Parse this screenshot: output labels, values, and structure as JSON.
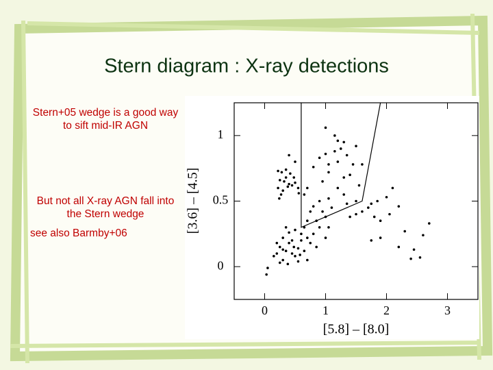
{
  "slide": {
    "title": "Stern diagram : X-ray detections",
    "notes": [
      "Stern+05 wedge is a good way to sift mid-IR AGN",
      "But not all X-ray AGN fall into the Stern wedge",
      "see also Barmby+06"
    ]
  },
  "chart_data": {
    "type": "scatter",
    "color": "#000000",
    "xlabel": "[5.8]  –  [8.0]",
    "ylabel": "[3.6]  –  [4.5]",
    "xlim": [
      -0.5,
      3.5
    ],
    "ylim": [
      -0.25,
      1.25
    ],
    "xticks": [
      0,
      1,
      2,
      3
    ],
    "yticks": [
      0,
      0.5,
      1
    ],
    "x": [
      0.22,
      0.28,
      0.35,
      0.42,
      0.25,
      0.32,
      0.4,
      0.45,
      0.5,
      0.22,
      0.3,
      0.38,
      0.55,
      0.24,
      0.5,
      0.4,
      0.35,
      0.48,
      0.27,
      0.56,
      1.0,
      1.2,
      1.3,
      1.25,
      0.9,
      1.0,
      1.15,
      1.35,
      1.5,
      1.2,
      1.45,
      1.6,
      0.8,
      1.05,
      1.3,
      1.4,
      1.55,
      0.95,
      1.2,
      0.9,
      1.05,
      1.3,
      0.8,
      0.75,
      0.95,
      1.1,
      1.5,
      0.7,
      0.85,
      1.0,
      1.35,
      1.15,
      1.05,
      0.7,
      0.65,
      1.6,
      1.7,
      1.75,
      1.85,
      2.0,
      2.1,
      2.2,
      1.8,
      1.9,
      1.5,
      1.4,
      2.3,
      2.2,
      2.45,
      2.4,
      2.55,
      2.7,
      2.6,
      1.75,
      1.9,
      2.05,
      0.2,
      0.25,
      0.3,
      0.35,
      0.4,
      0.45,
      0.5,
      0.55,
      0.6,
      0.65,
      0.7,
      0.75,
      0.3,
      0.4,
      0.5,
      0.6,
      0.8,
      0.9,
      1.0,
      1.05,
      0.25,
      0.38,
      0.55,
      0.15,
      0.45,
      0.65,
      0.7,
      0.35,
      0.05,
      0.03,
      0.2,
      0.85,
      0.48,
      0.58,
      0.3
    ],
    "values": [
      0.73,
      0.72,
      0.74,
      0.71,
      0.66,
      0.65,
      0.63,
      0.62,
      0.64,
      0.6,
      0.58,
      0.61,
      0.6,
      0.52,
      0.8,
      0.85,
      0.68,
      0.68,
      0.55,
      0.56,
      1.06,
      0.96,
      0.95,
      0.9,
      0.83,
      0.86,
      0.88,
      0.85,
      0.92,
      0.8,
      0.78,
      0.78,
      0.76,
      0.72,
      0.68,
      0.7,
      0.62,
      0.65,
      0.6,
      0.5,
      0.52,
      0.55,
      0.46,
      0.42,
      0.42,
      0.45,
      0.5,
      0.35,
      0.35,
      0.38,
      0.48,
      1.0,
      0.78,
      0.6,
      0.55,
      0.42,
      0.45,
      0.48,
      0.5,
      0.53,
      0.6,
      0.46,
      0.38,
      0.35,
      0.4,
      0.38,
      0.27,
      0.15,
      0.13,
      0.06,
      0.07,
      0.33,
      0.24,
      0.2,
      0.22,
      0.4,
      0.1,
      0.15,
      0.05,
      0.12,
      0.18,
      0.1,
      0.08,
      0.14,
      0.2,
      0.12,
      0.05,
      0.18,
      0.22,
      0.26,
      0.28,
      0.25,
      0.25,
      0.3,
      0.22,
      0.3,
      0.03,
      0.02,
      0.04,
      0.08,
      0.2,
      0.3,
      0.22,
      0.3,
      -0.01,
      -0.06,
      0.18,
      0.15,
      0.15,
      0.09,
      0.13
    ],
    "wedge": {
      "x": [
        0.6,
        0.6,
        1.6,
        1.9
      ],
      "y": [
        1.25,
        0.3,
        0.5,
        1.25
      ]
    }
  }
}
